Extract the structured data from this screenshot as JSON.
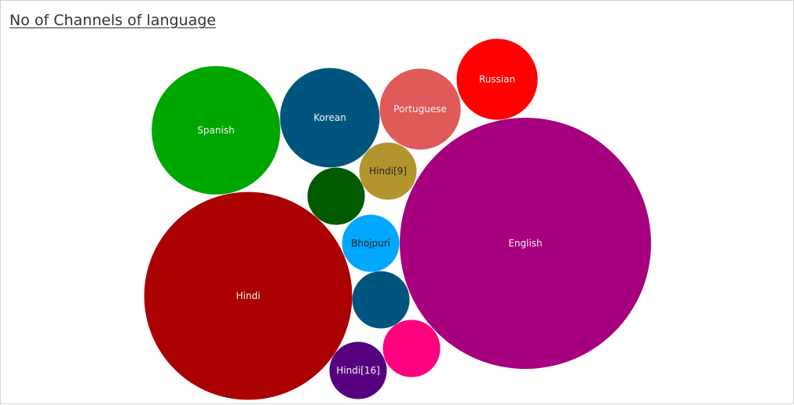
{
  "title": "No of Channels of language",
  "chart_data": {
    "type": "bubble",
    "title": "No of Channels of language",
    "bubbles": [
      {
        "label": "English",
        "value": 100,
        "color": "#a6007e",
        "text_color": "#f2f2f2"
      },
      {
        "label": "Hindi",
        "value": 68.5,
        "color": "#aa0000",
        "text_color": "#f2f2f2"
      },
      {
        "label": "Spanish",
        "value": 26.2,
        "color": "#00a600",
        "text_color": "#f2f2f2"
      },
      {
        "label": "Korean",
        "value": 15.7,
        "color": "#00557f",
        "text_color": "#f2f2f2"
      },
      {
        "label": "Portuguese",
        "value": 10.4,
        "color": "#e05a5a",
        "text_color": "#f2f2f2"
      },
      {
        "label": "Russian",
        "value": 10.4,
        "color": "#ff0000",
        "text_color": "#f2f2f2"
      },
      {
        "label": "Hindi[9]",
        "value": 5.2,
        "color": "#b3952f",
        "text_color": "#222222"
      },
      {
        "label": "Bhojpuri",
        "value": 5.2,
        "color": "#00a8ff",
        "text_color": "#222222"
      },
      {
        "label": "",
        "value": 5.2,
        "color": "#005a00",
        "text_color": "#f2f2f2"
      },
      {
        "label": "",
        "value": 5.2,
        "color": "#00557f",
        "text_color": "#f2f2f2"
      },
      {
        "label": "",
        "value": 5.2,
        "color": "#ff007f",
        "text_color": "#f2f2f2"
      },
      {
        "label": "Hindi[16]",
        "value": 5.2,
        "color": "#57007f",
        "text_color": "#f2f2f2"
      }
    ]
  }
}
